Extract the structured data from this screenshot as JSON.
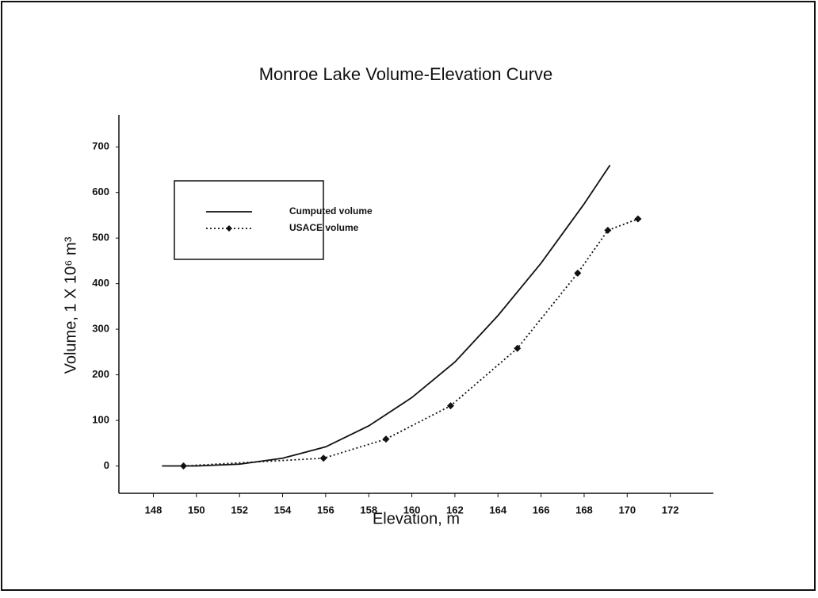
{
  "chart_data": {
    "type": "line",
    "title": "Monroe Lake Volume-Elevation Curve",
    "x_label": "Elevation, m",
    "y_label": "Volume, 1 X 10⁶ m³",
    "xlim": [
      146.4,
      174
    ],
    "xticks": [
      148,
      150,
      152,
      154,
      156,
      158,
      160,
      162,
      164,
      166,
      168,
      170,
      172
    ],
    "ylim": [
      -60,
      770
    ],
    "yticks": [
      0,
      100,
      200,
      300,
      400,
      500,
      600,
      700
    ],
    "grid": false,
    "legend": "upper left",
    "series": [
      {
        "name": "Cumputed volume",
        "color": "#111111",
        "style": "solid",
        "x": [
          148.4,
          150,
          152,
          154,
          156,
          158,
          160,
          162,
          164,
          166,
          168,
          169.2
        ],
        "values": [
          0,
          0,
          4,
          17,
          42,
          88,
          150,
          228,
          330,
          445,
          575,
          660
        ]
      },
      {
        "name": "USACE volume",
        "color": "#111111",
        "style": "dotted",
        "x": [
          149.4,
          155.9,
          158.8,
          161.8,
          164.9,
          167.7,
          169.1,
          170.5
        ],
        "values": [
          0,
          17,
          59,
          132,
          258,
          423,
          517,
          542
        ]
      }
    ]
  }
}
